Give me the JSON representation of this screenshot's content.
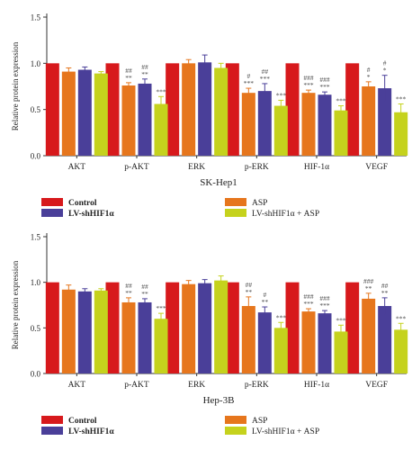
{
  "chart_data": [
    {
      "type": "bar",
      "title": "SK-Hep1",
      "xlabel": "",
      "ylabel": "Relative protein expression",
      "ylim": [
        0,
        1.5
      ],
      "yticks": [
        "0.0",
        "0.5",
        "1.0",
        "1.5"
      ],
      "categories": [
        "AKT",
        "p-AKT",
        "ERK",
        "p-ERK",
        "HIF-1α",
        "VEGF"
      ],
      "series": [
        {
          "name": "Control",
          "color": "#d7191c",
          "values": [
            1.0,
            1.0,
            1.0,
            1.0,
            1.0,
            1.0
          ],
          "errors": [
            0,
            0,
            0,
            0,
            0,
            0
          ]
        },
        {
          "name": "ASP",
          "color": "#e6761d",
          "values": [
            0.91,
            0.76,
            1.0,
            0.68,
            0.68,
            0.75
          ],
          "errors": [
            0.04,
            0.03,
            0.04,
            0.05,
            0.03,
            0.05
          ]
        },
        {
          "name": "LV-shHIF1α",
          "color": "#4a3f99",
          "values": [
            0.93,
            0.78,
            1.01,
            0.7,
            0.66,
            0.73
          ],
          "errors": [
            0.03,
            0.05,
            0.08,
            0.08,
            0.03,
            0.14
          ]
        },
        {
          "name": "LV-shHIF1α + ASP",
          "color": "#c5d21d",
          "values": [
            0.89,
            0.56,
            0.95,
            0.54,
            0.49,
            0.47
          ],
          "errors": [
            0.02,
            0.08,
            0.05,
            0.06,
            0.05,
            0.09
          ]
        }
      ],
      "annotations": [
        {
          "category": "p-AKT",
          "series": "ASP",
          "lines": [
            "##",
            "**"
          ]
        },
        {
          "category": "p-AKT",
          "series": "LV-shHIF1α",
          "lines": [
            "##",
            "**"
          ]
        },
        {
          "category": "p-AKT",
          "series": "LV-shHIF1α + ASP",
          "lines": [
            "***"
          ]
        },
        {
          "category": "p-ERK",
          "series": "ASP",
          "lines": [
            "#",
            "***"
          ]
        },
        {
          "category": "p-ERK",
          "series": "LV-shHIF1α",
          "lines": [
            "##",
            "***"
          ]
        },
        {
          "category": "p-ERK",
          "series": "LV-shHIF1α + ASP",
          "lines": [
            "***"
          ]
        },
        {
          "category": "HIF-1α",
          "series": "ASP",
          "lines": [
            "###",
            "***"
          ]
        },
        {
          "category": "HIF-1α",
          "series": "LV-shHIF1α",
          "lines": [
            "###",
            "***"
          ]
        },
        {
          "category": "HIF-1α",
          "series": "LV-shHIF1α + ASP",
          "lines": [
            "***"
          ]
        },
        {
          "category": "VEGF",
          "series": "ASP",
          "lines": [
            "#",
            "*"
          ]
        },
        {
          "category": "VEGF",
          "series": "LV-shHIF1α",
          "lines": [
            "#",
            "*"
          ]
        },
        {
          "category": "VEGF",
          "series": "LV-shHIF1α + ASP",
          "lines": [
            "***"
          ]
        }
      ]
    },
    {
      "type": "bar",
      "title": "Hep-3B",
      "xlabel": "",
      "ylabel": "Relative protein expression",
      "ylim": [
        0,
        1.5
      ],
      "yticks": [
        "0.0",
        "0.5",
        "1.0",
        "1.5"
      ],
      "categories": [
        "AKT",
        "p-AKT",
        "ERK",
        "p-ERK",
        "HIF-1α",
        "VEGF"
      ],
      "series": [
        {
          "name": "Control",
          "color": "#d7191c",
          "values": [
            1.0,
            1.0,
            1.0,
            1.0,
            1.0,
            1.0
          ],
          "errors": [
            0,
            0,
            0,
            0,
            0,
            0
          ]
        },
        {
          "name": "ASP",
          "color": "#e6761d",
          "values": [
            0.92,
            0.78,
            0.98,
            0.74,
            0.68,
            0.82
          ],
          "errors": [
            0.05,
            0.05,
            0.04,
            0.1,
            0.03,
            0.06
          ]
        },
        {
          "name": "LV-shHIF1α",
          "color": "#4a3f99",
          "values": [
            0.9,
            0.78,
            0.99,
            0.67,
            0.66,
            0.74
          ],
          "errors": [
            0.03,
            0.04,
            0.04,
            0.06,
            0.03,
            0.09
          ]
        },
        {
          "name": "LV-shHIF1α + ASP",
          "color": "#c5d21d",
          "values": [
            0.91,
            0.6,
            1.02,
            0.5,
            0.46,
            0.48
          ],
          "errors": [
            0.02,
            0.06,
            0.05,
            0.06,
            0.07,
            0.07
          ]
        }
      ],
      "annotations": [
        {
          "category": "p-AKT",
          "series": "ASP",
          "lines": [
            "##",
            "**"
          ]
        },
        {
          "category": "p-AKT",
          "series": "LV-shHIF1α",
          "lines": [
            "##",
            "**"
          ]
        },
        {
          "category": "p-AKT",
          "series": "LV-shHIF1α + ASP",
          "lines": [
            "***"
          ]
        },
        {
          "category": "p-ERK",
          "series": "ASP",
          "lines": [
            "##",
            "**"
          ]
        },
        {
          "category": "p-ERK",
          "series": "LV-shHIF1α",
          "lines": [
            "#",
            "**"
          ]
        },
        {
          "category": "p-ERK",
          "series": "LV-shHIF1α + ASP",
          "lines": [
            "***"
          ]
        },
        {
          "category": "HIF-1α",
          "series": "ASP",
          "lines": [
            "###",
            "***"
          ]
        },
        {
          "category": "HIF-1α",
          "series": "LV-shHIF1α",
          "lines": [
            "###",
            "***"
          ]
        },
        {
          "category": "HIF-1α",
          "series": "LV-shHIF1α + ASP",
          "lines": [
            "***"
          ]
        },
        {
          "category": "VEGF",
          "series": "ASP",
          "lines": [
            "###",
            "**"
          ]
        },
        {
          "category": "VEGF",
          "series": "LV-shHIF1α",
          "lines": [
            "##",
            "**"
          ]
        },
        {
          "category": "VEGF",
          "series": "LV-shHIF1α + ASP",
          "lines": [
            "***"
          ]
        }
      ]
    }
  ]
}
